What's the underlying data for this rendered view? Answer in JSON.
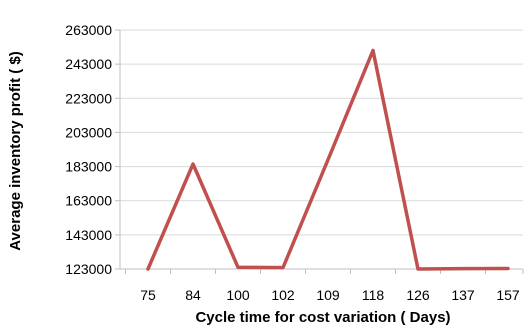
{
  "chart_data": {
    "type": "line",
    "title": "",
    "xlabel": "Cycle time  for cost variation ( Days)",
    "ylabel": "Average inventory profit ( $)",
    "categories": [
      "75",
      "84",
      "100",
      "102",
      "109",
      "118",
      "126",
      "137",
      "157"
    ],
    "series": [
      {
        "values": [
          123000,
          184500,
          124000,
          123800,
          187000,
          251000,
          123000,
          123200,
          123300
        ],
        "color": "#c0504d"
      }
    ],
    "ylim": [
      123000,
      263000
    ],
    "yticks": [
      "123000",
      "143000",
      "163000",
      "183000",
      "203000",
      "223000",
      "243000",
      "263000"
    ],
    "grid": true,
    "legend": "none"
  }
}
